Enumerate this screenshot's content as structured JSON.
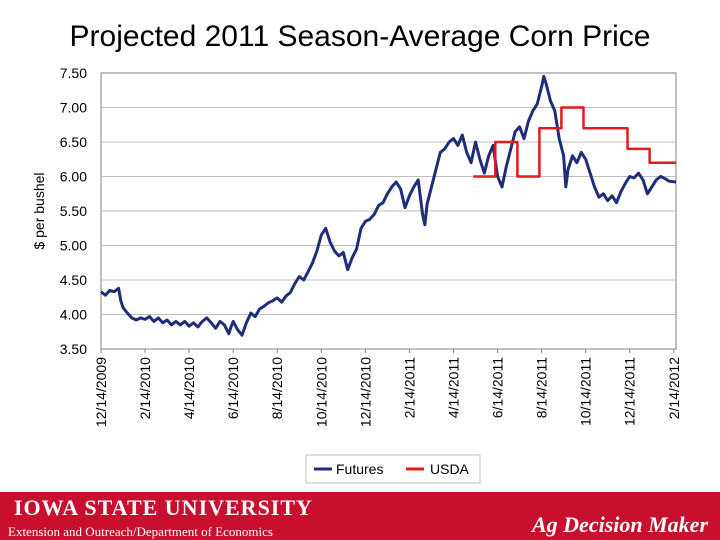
{
  "slide": {
    "title": "Projected 2011 Season-Average Corn Price"
  },
  "footer": {
    "university": "IOWA STATE UNIVERSITY",
    "subtitle": "Extension and Outreach/Department of Economics",
    "brand": "Ag Decision Maker"
  },
  "colors": {
    "futures": "#1f2d7a",
    "usda": "#e31a1c",
    "grid": "#bfbfbf",
    "footer": "#c8102e"
  },
  "chart_data": {
    "type": "line",
    "title": "Projected 2011 Season-Average Corn Price",
    "xlabel": "",
    "ylabel": "$ per bushel",
    "ylim": [
      3.5,
      7.5
    ],
    "yticks": [
      "3.50",
      "4.00",
      "4.50",
      "5.00",
      "5.50",
      "6.00",
      "6.50",
      "7.00",
      "7.50"
    ],
    "xlim": [
      0,
      26.1
    ],
    "xticks": [
      {
        "x": 0,
        "label": "12/14/2009"
      },
      {
        "x": 2,
        "label": "2/14/2010"
      },
      {
        "x": 4,
        "label": "4/14/2010"
      },
      {
        "x": 6,
        "label": "6/14/2010"
      },
      {
        "x": 8,
        "label": "8/14/2010"
      },
      {
        "x": 10,
        "label": "10/14/2010"
      },
      {
        "x": 12,
        "label": "12/14/2010"
      },
      {
        "x": 14,
        "label": "2/14/2011"
      },
      {
        "x": 16,
        "label": "4/14/2011"
      },
      {
        "x": 18,
        "label": "6/14/2011"
      },
      {
        "x": 20,
        "label": "8/14/2011"
      },
      {
        "x": 22,
        "label": "10/14/2011"
      },
      {
        "x": 24,
        "label": "12/14/2011"
      },
      {
        "x": 26,
        "label": "2/14/2012"
      }
    ],
    "grid": true,
    "legend": "bottom",
    "series": [
      {
        "name": "Futures",
        "kind": "line",
        "points": [
          [
            0,
            4.33
          ],
          [
            0.2,
            4.28
          ],
          [
            0.4,
            4.35
          ],
          [
            0.6,
            4.33
          ],
          [
            0.8,
            4.38
          ],
          [
            0.9,
            4.2
          ],
          [
            1.0,
            4.1
          ],
          [
            1.2,
            4.02
          ],
          [
            1.4,
            3.95
          ],
          [
            1.6,
            3.92
          ],
          [
            1.8,
            3.95
          ],
          [
            2.0,
            3.93
          ],
          [
            2.2,
            3.97
          ],
          [
            2.4,
            3.9
          ],
          [
            2.6,
            3.95
          ],
          [
            2.8,
            3.88
          ],
          [
            3.0,
            3.92
          ],
          [
            3.2,
            3.85
          ],
          [
            3.4,
            3.9
          ],
          [
            3.6,
            3.85
          ],
          [
            3.8,
            3.9
          ],
          [
            4.0,
            3.83
          ],
          [
            4.2,
            3.88
          ],
          [
            4.4,
            3.82
          ],
          [
            4.6,
            3.9
          ],
          [
            4.8,
            3.95
          ],
          [
            5.0,
            3.88
          ],
          [
            5.2,
            3.8
          ],
          [
            5.4,
            3.9
          ],
          [
            5.6,
            3.85
          ],
          [
            5.8,
            3.72
          ],
          [
            5.9,
            3.82
          ],
          [
            6.0,
            3.9
          ],
          [
            6.2,
            3.78
          ],
          [
            6.4,
            3.7
          ],
          [
            6.6,
            3.88
          ],
          [
            6.8,
            4.02
          ],
          [
            7.0,
            3.97
          ],
          [
            7.2,
            4.08
          ],
          [
            7.4,
            4.12
          ],
          [
            7.6,
            4.17
          ],
          [
            7.8,
            4.2
          ],
          [
            8.0,
            4.24
          ],
          [
            8.2,
            4.18
          ],
          [
            8.4,
            4.27
          ],
          [
            8.6,
            4.32
          ],
          [
            8.8,
            4.45
          ],
          [
            9.0,
            4.55
          ],
          [
            9.2,
            4.5
          ],
          [
            9.4,
            4.62
          ],
          [
            9.6,
            4.75
          ],
          [
            9.8,
            4.92
          ],
          [
            10.0,
            5.15
          ],
          [
            10.2,
            5.25
          ],
          [
            10.4,
            5.05
          ],
          [
            10.6,
            4.92
          ],
          [
            10.8,
            4.85
          ],
          [
            11.0,
            4.9
          ],
          [
            11.2,
            4.65
          ],
          [
            11.4,
            4.82
          ],
          [
            11.6,
            4.95
          ],
          [
            11.8,
            5.25
          ],
          [
            12.0,
            5.35
          ],
          [
            12.2,
            5.38
          ],
          [
            12.4,
            5.45
          ],
          [
            12.6,
            5.58
          ],
          [
            12.8,
            5.62
          ],
          [
            13.0,
            5.75
          ],
          [
            13.2,
            5.85
          ],
          [
            13.4,
            5.92
          ],
          [
            13.6,
            5.82
          ],
          [
            13.8,
            5.55
          ],
          [
            14.0,
            5.72
          ],
          [
            14.2,
            5.85
          ],
          [
            14.4,
            5.95
          ],
          [
            14.6,
            5.45
          ],
          [
            14.7,
            5.3
          ],
          [
            14.8,
            5.6
          ],
          [
            15.0,
            5.85
          ],
          [
            15.2,
            6.1
          ],
          [
            15.4,
            6.35
          ],
          [
            15.6,
            6.4
          ],
          [
            15.8,
            6.5
          ],
          [
            16.0,
            6.55
          ],
          [
            16.2,
            6.45
          ],
          [
            16.4,
            6.6
          ],
          [
            16.6,
            6.35
          ],
          [
            16.8,
            6.2
          ],
          [
            17.0,
            6.5
          ],
          [
            17.2,
            6.25
          ],
          [
            17.4,
            6.05
          ],
          [
            17.6,
            6.3
          ],
          [
            17.8,
            6.45
          ],
          [
            18.0,
            6.0
          ],
          [
            18.2,
            5.85
          ],
          [
            18.4,
            6.15
          ],
          [
            18.6,
            6.4
          ],
          [
            18.8,
            6.65
          ],
          [
            19.0,
            6.72
          ],
          [
            19.2,
            6.55
          ],
          [
            19.4,
            6.8
          ],
          [
            19.6,
            6.95
          ],
          [
            19.8,
            7.05
          ],
          [
            20.0,
            7.3
          ],
          [
            20.1,
            7.45
          ],
          [
            20.2,
            7.35
          ],
          [
            20.4,
            7.1
          ],
          [
            20.6,
            6.95
          ],
          [
            20.8,
            6.55
          ],
          [
            21.0,
            6.3
          ],
          [
            21.1,
            5.85
          ],
          [
            21.2,
            6.1
          ],
          [
            21.4,
            6.3
          ],
          [
            21.6,
            6.2
          ],
          [
            21.8,
            6.35
          ],
          [
            22.0,
            6.25
          ],
          [
            22.2,
            6.05
          ],
          [
            22.4,
            5.85
          ],
          [
            22.6,
            5.7
          ],
          [
            22.8,
            5.75
          ],
          [
            23.0,
            5.65
          ],
          [
            23.2,
            5.72
          ],
          [
            23.4,
            5.62
          ],
          [
            23.6,
            5.78
          ],
          [
            23.8,
            5.9
          ],
          [
            24.0,
            6.0
          ],
          [
            24.2,
            5.98
          ],
          [
            24.4,
            6.05
          ],
          [
            24.6,
            5.95
          ],
          [
            24.8,
            5.75
          ],
          [
            25.0,
            5.85
          ],
          [
            25.2,
            5.95
          ],
          [
            25.4,
            6.0
          ],
          [
            25.6,
            5.97
          ],
          [
            25.8,
            5.93
          ],
          [
            26.1,
            5.92
          ]
        ]
      },
      {
        "name": "USDA",
        "kind": "step",
        "points": [
          [
            16.9,
            6.0
          ],
          [
            17.9,
            6.0
          ],
          [
            17.9,
            6.5
          ],
          [
            18.9,
            6.5
          ],
          [
            18.9,
            6.0
          ],
          [
            19.9,
            6.0
          ],
          [
            19.9,
            6.7
          ],
          [
            20.9,
            6.7
          ],
          [
            20.9,
            7.0
          ],
          [
            21.9,
            7.0
          ],
          [
            21.9,
            6.7
          ],
          [
            23.9,
            6.7
          ],
          [
            23.9,
            6.4
          ],
          [
            24.9,
            6.4
          ],
          [
            24.9,
            6.2
          ],
          [
            26.1,
            6.2
          ]
        ]
      }
    ]
  }
}
